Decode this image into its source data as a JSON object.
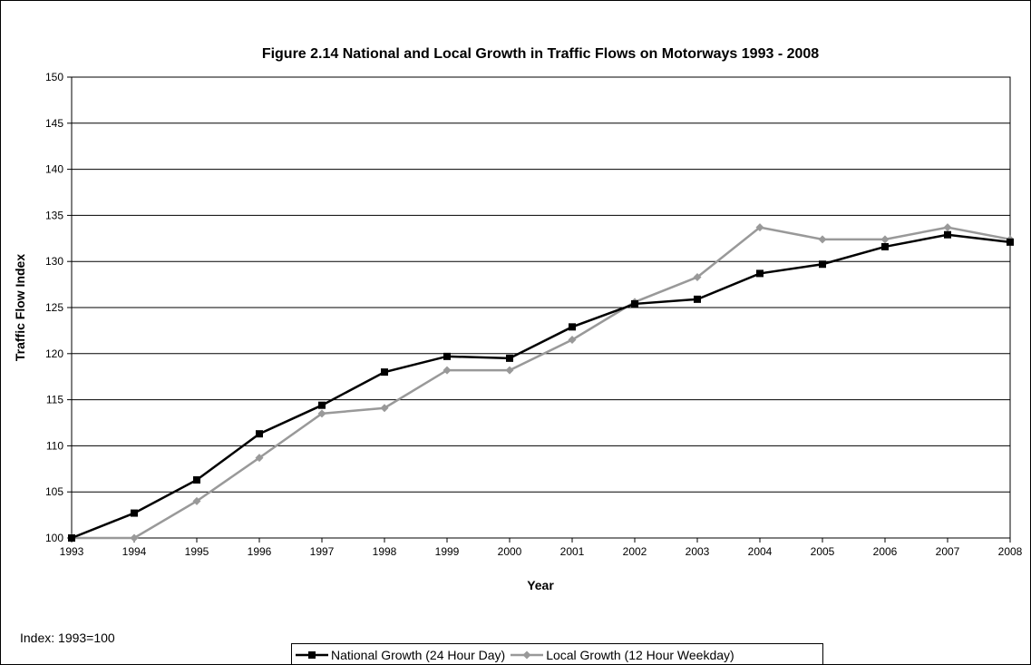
{
  "chart_data": {
    "type": "line",
    "title": "Figure 2.14 National and Local Growth in Traffic Flows on Motorways 1993 - 2008",
    "xlabel": "Year",
    "ylabel": "Traffic Flow Index",
    "note": "Index: 1993=100",
    "x": [
      "1993",
      "1994",
      "1995",
      "1996",
      "1997",
      "1998",
      "1999",
      "2000",
      "2001",
      "2002",
      "2003",
      "2004",
      "2005",
      "2006",
      "2007",
      "2008"
    ],
    "ylim": [
      100,
      150
    ],
    "yticks": [
      100,
      105,
      110,
      115,
      120,
      125,
      130,
      135,
      140,
      145,
      150
    ],
    "grid": true,
    "legend_position": "bottom",
    "series": [
      {
        "name": "National Growth (24 Hour Day)",
        "color": "#000000",
        "marker": "square",
        "values": [
          100,
          102.7,
          106.3,
          111.3,
          114.4,
          118.0,
          119.7,
          119.5,
          122.9,
          125.4,
          125.9,
          128.7,
          129.7,
          131.6,
          132.9,
          132.1
        ]
      },
      {
        "name": "Local Growth (12 Hour Weekday)",
        "color": "#999999",
        "marker": "diamond",
        "values": [
          100,
          100,
          104.0,
          108.7,
          113.5,
          114.1,
          118.2,
          118.2,
          121.5,
          125.6,
          128.3,
          133.7,
          132.4,
          132.4,
          133.7,
          132.4
        ]
      }
    ]
  }
}
